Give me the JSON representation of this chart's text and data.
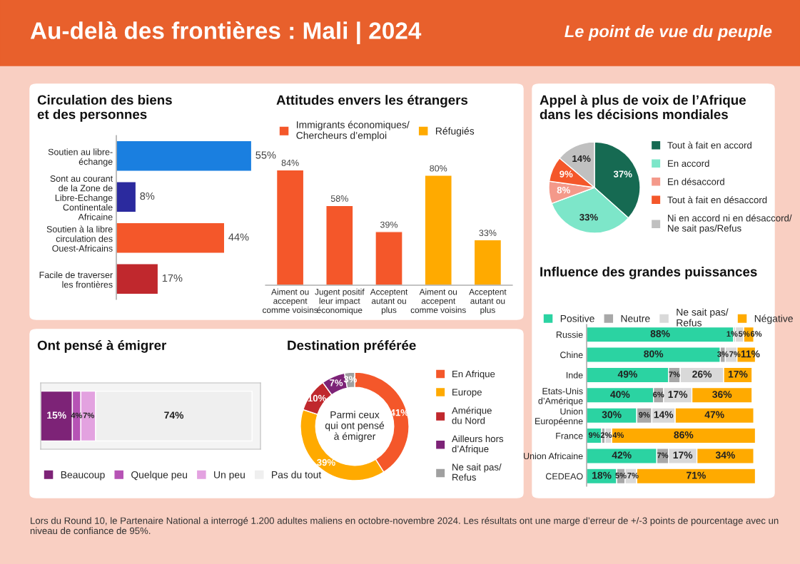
{
  "chart_data": [
    {
      "type": "bar",
      "orientation": "horizontal",
      "title": "Circulation des biens\net des personnes",
      "tick_labels": "y",
      "legend": false,
      "categories": [
        "Soutien au libre-\néchange",
        "Sont au courant\nde la Zone de\nLibre-Echange\nContinentale\nAfricaine",
        "Soutien à la libre\ncirculation des\nOuest-Africains",
        "Facile de traverser\nles frontières"
      ],
      "values": [
        55,
        8,
        44,
        17
      ],
      "colors": [
        "#1a7fe0",
        "#2b2a9e",
        "#f4572a",
        "#c0282d"
      ],
      "value_labels": [
        "55%",
        "8%",
        "44%",
        "17%"
      ],
      "annotations": [
        "Au-delà des frontières : Mali | 2024",
        "Le point de vue du peuple",
        "Lors du Round 10, le Partenaire National a interrogé 1.200 adultes maliens en octobre-novembre 2024. Les résultats ont une marge d’erreur de +/-3 points de pourcentage avec un niveau de confiance de 95%."
      ]
    },
    {
      "type": "bar",
      "title": "Attitudes envers les étrangers",
      "tick_labels": "x",
      "legend": "top",
      "categories": [
        "Aiment ou\naccepent\ncomme voisins",
        "Jugent positif\nleur impact\néconomique",
        "Acceptent\nautant ou\nplus",
        "Aiment ou\naccepent\ncomme voisins",
        "Acceptent\nautant ou\nplus"
      ],
      "series": [
        {
          "name": "Immigrants économiques/\nChercheurs d’emploi",
          "color": "#f4572a",
          "values": [
            84,
            58,
            39,
            null,
            null
          ],
          "value_labels": [
            "84%",
            "58%",
            "39%",
            null,
            null
          ]
        },
        {
          "name": "Réfugiés",
          "color": "#ffaa00",
          "values": [
            null,
            null,
            null,
            80,
            33
          ],
          "value_labels": [
            null,
            null,
            null,
            "80%",
            "33%"
          ]
        }
      ]
    },
    {
      "type": "pie",
      "title": "Appel à plus de voix de l’Afrique\ndans les décisions mondiales",
      "legend": "right",
      "categories": [
        "Tout à fait en accord",
        "En accord",
        "En désaccord",
        "Tout à fait en désaccord",
        "Ni en accord ni en désaccord/\nNe sait pas/Refus"
      ],
      "values": [
        37,
        33,
        8,
        9,
        14
      ],
      "colors": [
        "#166a52",
        "#7de6c9",
        "#f4998a",
        "#f4572a",
        "#c0c0c0"
      ],
      "value_labels": [
        "37%",
        "33%",
        "8%",
        "9%",
        "14%"
      ]
    },
    {
      "type": "bar",
      "orientation": "horizontal",
      "stacked": true,
      "title": "Ont pensé à émigrer",
      "tick_labels": false,
      "legend": "bottom",
      "categories": [
        null
      ],
      "series": [
        {
          "name": "Beaucoup",
          "color": "#7d2377",
          "values": [
            15
          ],
          "value_labels": [
            "15%"
          ]
        },
        {
          "name": "Quelque peu",
          "color": "#b653b5",
          "values": [
            4
          ],
          "value_labels": [
            "4%"
          ]
        },
        {
          "name": "Un peu",
          "color": "#e3a2e0",
          "values": [
            7
          ],
          "value_labels": [
            "7%"
          ]
        },
        {
          "name": "Pas du tout",
          "color": "#efefef",
          "values": [
            74
          ],
          "value_labels": [
            "74%"
          ]
        }
      ]
    },
    {
      "type": "donut",
      "title": "Destination préférée",
      "legend": "right",
      "annotations": [
        "Parmi ceux\nqui ont pensé\nà émigrer"
      ],
      "categories": [
        "En Afrique",
        "Europe",
        "Amérique\ndu Nord",
        "Ailleurs hors\nd’Afrique",
        "Ne sait pas/\nRefus"
      ],
      "values": [
        41,
        39,
        10,
        7,
        3
      ],
      "colors": [
        "#f4572a",
        "#ffaa00",
        "#c0282d",
        "#7d2377",
        "#a0a0a0"
      ],
      "value_labels": [
        "41%",
        "39%",
        "10%",
        "7%",
        "3%"
      ]
    },
    {
      "type": "bar",
      "orientation": "horizontal",
      "stacked": true,
      "title": "Influence des grandes puissances",
      "tick_labels": "y",
      "legend": "top",
      "categories": [
        "Russie",
        "Chine",
        "Inde",
        "Etats-Unis\nd’Amérique",
        "Union\nEuropéenne",
        "France",
        "Union Africaine",
        "CEDEAO"
      ],
      "series": [
        {
          "name": "Positive",
          "color": "#2bd3a2",
          "values": [
            88,
            80,
            49,
            40,
            30,
            9,
            42,
            18
          ],
          "value_labels": [
            "88%",
            "80%",
            "49%",
            "40%",
            "30%",
            "9%",
            "42%",
            "18%"
          ]
        },
        {
          "name": "Neutre",
          "color": "#a8a8a8",
          "values": [
            1,
            3,
            7,
            6,
            9,
            2,
            7,
            5
          ],
          "value_labels": [
            "1%",
            "3%",
            "7%",
            "6%",
            "9%",
            "2%",
            "7%",
            "5%"
          ]
        },
        {
          "name": "Ne sait pas/\nRefus",
          "color": "#d9d9d9",
          "values": [
            5,
            7,
            26,
            17,
            14,
            4,
            17,
            7
          ],
          "value_labels": [
            "5%",
            "7%",
            "26%",
            "17%",
            "14%",
            "4%",
            "17%",
            "7%"
          ]
        },
        {
          "name": "Négative",
          "color": "#ffaa00",
          "values": [
            6,
            11,
            17,
            36,
            47,
            86,
            34,
            71
          ],
          "value_labels": [
            "6%",
            "11%",
            "17%",
            "36%",
            "47%",
            "86%",
            "34%",
            "71%"
          ]
        }
      ]
    }
  ]
}
